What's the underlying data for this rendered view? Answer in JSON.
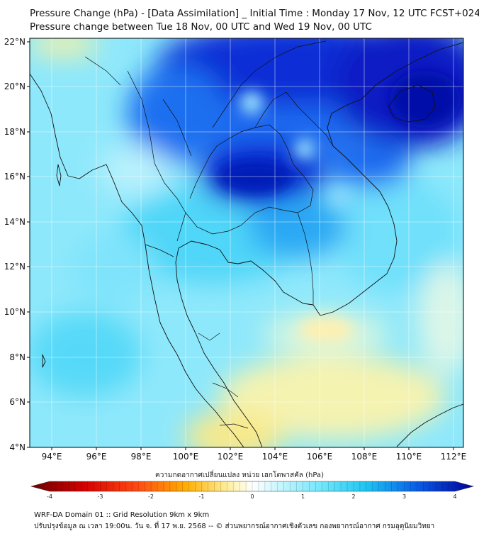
{
  "title": {
    "line1": "Pressure Change (hPa) - [Data Assimilation] _ Initial Time : Monday 17 Nov, 12 UTC FCST+024",
    "line2": "Pressure change between Tue 18 Nov, 00 UTC and Wed 19 Nov, 00 UTC"
  },
  "axes": {
    "lat_labels": [
      "22°N",
      "20°N",
      "18°N",
      "16°N",
      "14°N",
      "12°N",
      "10°N",
      "8°N",
      "6°N",
      "4°N"
    ],
    "lon_labels": [
      "94°E",
      "96°E",
      "98°E",
      "100°E",
      "102°E",
      "104°E",
      "106°E",
      "108°E",
      "110°E",
      "112°E"
    ]
  },
  "colorbar": {
    "title": "ความกดอากาศเปลี่ยนแปลง หน่วย เฮกโตพาสคัล (hPa)",
    "ticks": [
      "-4",
      "-3",
      "-2",
      "-1",
      "0",
      "1",
      "2",
      "3",
      "4"
    ],
    "min": -4,
    "max": 4,
    "colors": [
      "#7a0000",
      "#e00000",
      "#ff5a1a",
      "#ffb000",
      "#fff9c8",
      "#ffffff",
      "#b8f2ff",
      "#2cd4f4",
      "#0a63e8",
      "#00009a"
    ]
  },
  "footer": {
    "line1": "WRF-DA Domain 01 :: Grid Resolution 9km x 9km",
    "line2": "ปรับปรุงข้อมูล ณ เวลา 19:00น. วัน จ. ที่ 17 พ.ย. 2568 -- © ส่วนพยากรณ์อากาศเชิงตัวเลข กองพยากรณ์อากาศ กรมอุตุนิยมวิทยา"
  }
}
